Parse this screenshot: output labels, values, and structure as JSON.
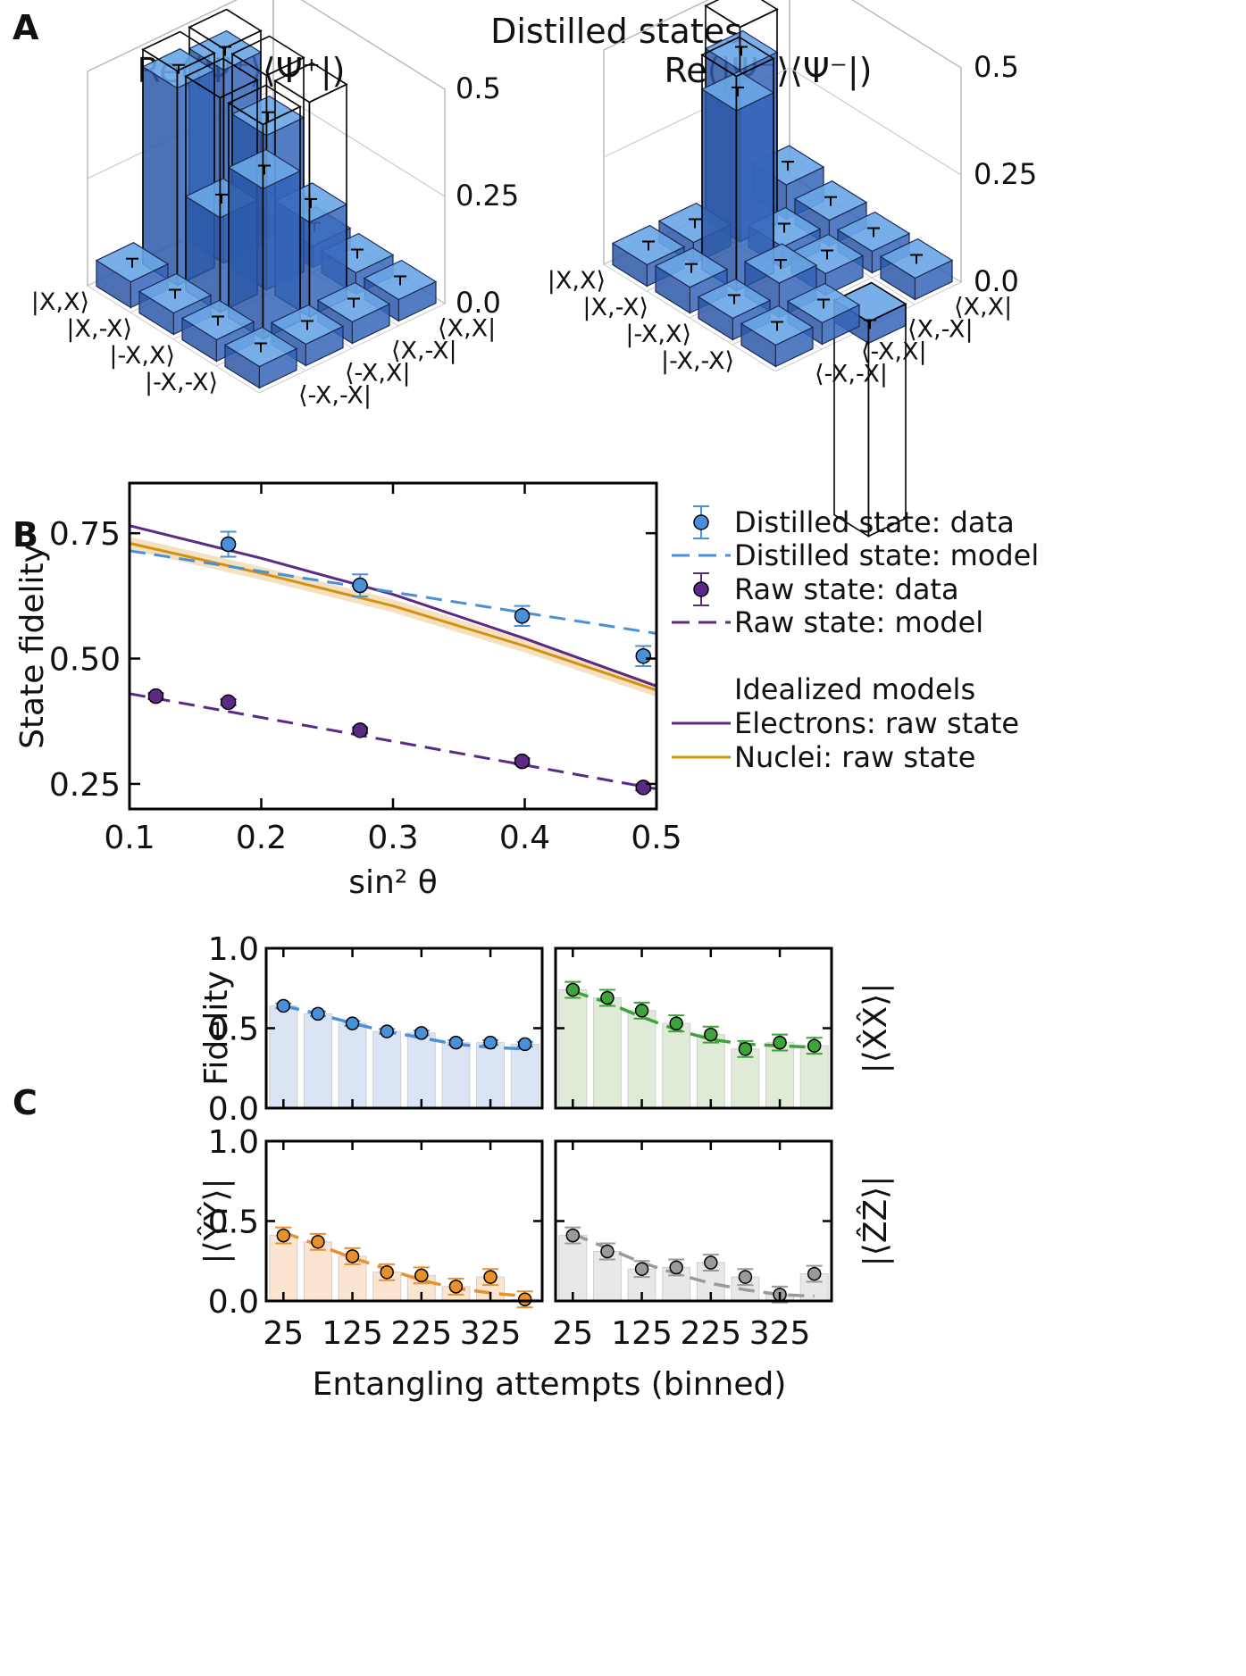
{
  "panels": {
    "a": "A",
    "b": "B",
    "c": "C"
  },
  "chart_data": [
    {
      "type": "bar3d",
      "panel": "A",
      "suptitle": "Distilled states",
      "charts": [
        {
          "title": "Re(|Ψ⁺⟩⟨Ψ⁺|)",
          "zticks": [
            "0.0",
            "0.25",
            "0.5"
          ],
          "zlim": [
            0,
            0.5
          ],
          "row_labels": [
            "|X,X⟩",
            "|X,-X⟩",
            "|-X,X⟩",
            "|-X,-X⟩"
          ],
          "col_labels": [
            "⟨-X,-X|",
            "⟨-X,X|",
            "⟨X,-X|",
            "⟨X,X|"
          ],
          "measured": [
            [
              0.06,
              0.45,
              0.46,
              0.06
            ],
            [
              0.05,
              0.36,
              0.22,
              0.05
            ],
            [
              0.05,
              0.22,
              0.35,
              0.05
            ],
            [
              0.05,
              0.05,
              0.05,
              0.05
            ]
          ],
          "ideal": [
            [
              0,
              0.5,
              0.5,
              0
            ],
            [
              0,
              0.5,
              0.5,
              0
            ],
            [
              0,
              0.5,
              0.5,
              0
            ],
            [
              0,
              0,
              0,
              0
            ]
          ]
        },
        {
          "title": "Re(|Ψ⁻⟩⟨Ψ⁻|)",
          "zticks": [
            "0.0",
            "0.25",
            "0.5"
          ],
          "zlim": [
            0,
            0.5
          ],
          "row_labels": [
            "|X,X⟩",
            "|X,-X⟩",
            "|-X,X⟩",
            "|-X,-X⟩"
          ],
          "col_labels": [
            "⟨-X,-X|",
            "⟨-X,X|",
            "⟨X,-X|",
            "⟨X,X|"
          ],
          "measured": [
            [
              0.08,
              0.4,
              0.05,
              0.05
            ],
            [
              0.06,
              0.05,
              0.42,
              0.06
            ],
            [
              0.05,
              0.05,
              0.08,
              0.05
            ],
            [
              0.05,
              -0.05,
              0.05,
              0.05
            ]
          ],
          "ideal": [
            [
              0,
              0.5,
              0,
              0
            ],
            [
              0,
              0,
              0.5,
              0
            ],
            [
              0,
              0,
              0,
              0
            ],
            [
              0,
              -0.5,
              0,
              0
            ]
          ]
        }
      ]
    },
    {
      "type": "scatter",
      "panel": "B",
      "xlabel": "sin² θ",
      "ylabel": "State fidelity",
      "xlim": [
        0.1,
        0.5
      ],
      "ylim": [
        0.2,
        0.85
      ],
      "xticks": [
        "0.1",
        "0.2",
        "0.3",
        "0.4",
        "0.5"
      ],
      "yticks": [
        "0.25",
        "0.50",
        "0.75"
      ],
      "series": [
        {
          "name": "Distilled state: data",
          "color": "#4a90d9",
          "x": [
            0.175,
            0.275,
            0.398,
            0.49
          ],
          "y": [
            0.728,
            0.646,
            0.585,
            0.505
          ],
          "err": [
            0.025,
            0.022,
            0.02,
            0.02
          ]
        },
        {
          "name": "Distilled state: model",
          "color": "#4a90d9",
          "x": [
            0.1,
            0.5
          ],
          "y": [
            0.715,
            0.55
          ]
        },
        {
          "name": "Raw state: data",
          "color": "#5b2a86",
          "x": [
            0.12,
            0.175,
            0.275,
            0.398,
            0.49
          ],
          "y": [
            0.425,
            0.413,
            0.357,
            0.295,
            0.243
          ],
          "err": [
            0.006,
            0.006,
            0.006,
            0.006,
            0.006
          ]
        },
        {
          "name": "Raw state: model",
          "color": "#5b2a86",
          "x": [
            0.1,
            0.5
          ],
          "y": [
            0.43,
            0.24
          ]
        },
        {
          "name": "Electrons: raw state",
          "color": "#5b2a86",
          "x": [
            0.1,
            0.2,
            0.3,
            0.4,
            0.5
          ],
          "y": [
            0.765,
            0.7,
            0.628,
            0.54,
            0.445
          ]
        },
        {
          "name": "Nuclei: raw state",
          "color": "#d4900f",
          "x": [
            0.1,
            0.2,
            0.3,
            0.4,
            0.5
          ],
          "y": [
            0.73,
            0.67,
            0.605,
            0.525,
            0.437
          ]
        }
      ],
      "legend": {
        "header": "Idealized models",
        "entries": [
          "Distilled state: data",
          "Distilled state: model",
          "Raw state: data",
          "Raw state: model",
          "Electrons: raw state",
          "Nuclei: raw state"
        ]
      }
    },
    {
      "type": "bar",
      "panel": "C",
      "xlabel": "Entangling attempts (binned)",
      "xticks": [
        "25",
        "125",
        "225",
        "325"
      ],
      "yticks": [
        "0.0",
        "0.5",
        "1.0"
      ],
      "ylim": [
        0,
        1
      ],
      "categories": [
        25,
        75,
        125,
        175,
        225,
        275,
        325,
        375
      ],
      "subplots": [
        {
          "label": "Fidelity",
          "color": "#4a90d9",
          "bar_color": "#dbe4f4",
          "values": [
            0.64,
            0.59,
            0.53,
            0.48,
            0.47,
            0.41,
            0.41,
            0.4
          ],
          "err": [
            0.015,
            0.015,
            0.015,
            0.015,
            0.015,
            0.015,
            0.015,
            0.015
          ],
          "model": [
            0.64,
            0.59,
            0.53,
            0.48,
            0.44,
            0.4,
            0.38,
            0.37
          ]
        },
        {
          "label": "|⟨X̂X̂⟩|",
          "color": "#3ea33a",
          "bar_color": "#e0ebd7",
          "values": [
            0.74,
            0.69,
            0.61,
            0.53,
            0.46,
            0.37,
            0.41,
            0.39
          ],
          "err": [
            0.05,
            0.05,
            0.05,
            0.05,
            0.05,
            0.05,
            0.05,
            0.05
          ],
          "model": [
            0.73,
            0.66,
            0.57,
            0.49,
            0.43,
            0.4,
            0.39,
            0.38
          ]
        },
        {
          "label": "|⟨ŶŶ⟩|",
          "color": "#e8912c",
          "bar_color": "#fbe5d1",
          "values": [
            0.41,
            0.37,
            0.28,
            0.18,
            0.16,
            0.09,
            0.15,
            0.01
          ],
          "err": [
            0.05,
            0.05,
            0.05,
            0.05,
            0.05,
            0.05,
            0.05,
            0.05
          ],
          "model": [
            0.43,
            0.35,
            0.27,
            0.2,
            0.13,
            0.08,
            0.05,
            0.03
          ]
        },
        {
          "label": "|⟨ẐẐ⟩|",
          "color": "#9a9a9a",
          "bar_color": "#e8e8e8",
          "values": [
            0.41,
            0.31,
            0.2,
            0.21,
            0.24,
            0.15,
            0.04,
            0.17
          ],
          "err": [
            0.05,
            0.05,
            0.05,
            0.05,
            0.05,
            0.05,
            0.05,
            0.05
          ],
          "model": [
            0.42,
            0.33,
            0.24,
            0.17,
            0.11,
            0.07,
            0.04,
            0.03
          ]
        }
      ]
    }
  ]
}
